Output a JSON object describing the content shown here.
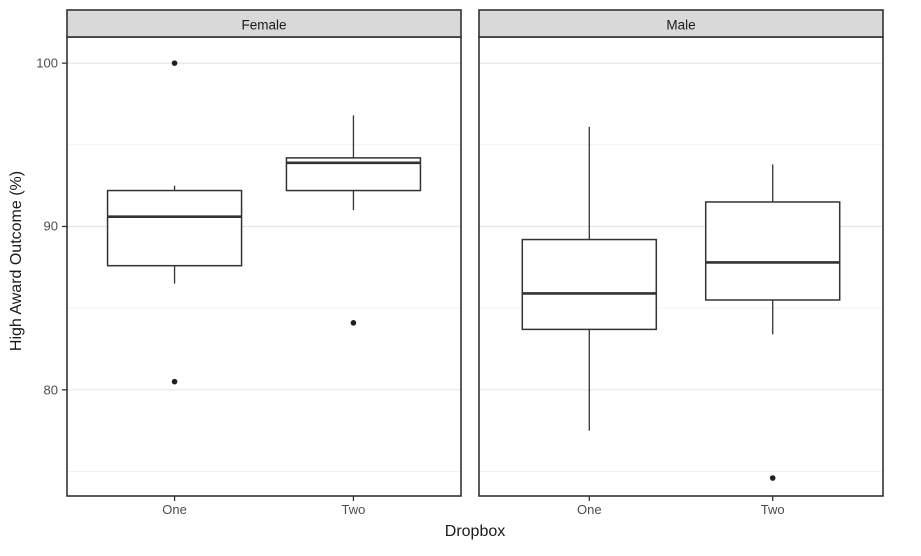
{
  "chart_data": {
    "type": "boxplot",
    "title": "",
    "xlabel": "Dropbox",
    "ylabel": "High Award Outcome (%)",
    "ylim": [
      73.5,
      101.6
    ],
    "y_ticks": [
      100,
      90,
      80
    ],
    "y_tick_labels": [
      "100",
      "90",
      "80"
    ],
    "y_major_gridlines": [
      100,
      90,
      80
    ],
    "y_minor_gridlines": [
      95,
      85,
      75
    ],
    "categories": [
      "One",
      "Two"
    ],
    "grid": true,
    "legend": null,
    "facets": [
      {
        "label": "Female",
        "boxes": [
          {
            "category": "One",
            "whisker_low": 86.5,
            "q1": 87.6,
            "median": 90.6,
            "q3": 92.2,
            "whisker_high": 92.5,
            "outliers": [
              100,
              80.5
            ]
          },
          {
            "category": "Two",
            "whisker_low": 91.0,
            "q1": 92.2,
            "median": 93.9,
            "q3": 94.2,
            "whisker_high": 96.8,
            "outliers": [
              84.1
            ]
          }
        ]
      },
      {
        "label": "Male",
        "boxes": [
          {
            "category": "One",
            "whisker_low": 77.5,
            "q1": 83.7,
            "median": 85.9,
            "q3": 89.2,
            "whisker_high": 96.1,
            "outliers": []
          },
          {
            "category": "Two",
            "whisker_low": 83.4,
            "q1": 85.5,
            "median": 87.8,
            "q3": 91.5,
            "whisker_high": 93.8,
            "outliers": [
              74.6
            ]
          }
        ]
      }
    ]
  },
  "style": {
    "background": "#ffffff",
    "strip_fill": "#d9d9d9",
    "strip_border": "#333333",
    "panel_border": "#333333",
    "box_stroke": "#333333",
    "box_fill": "#ffffff",
    "grid_major": "#e6e6e6",
    "grid_minor": "#f2f2f2",
    "tick_color": "#333333",
    "tick_label_color": "#4d4d4d",
    "title_color": "#1a1a1a",
    "outlier_color": "#1f1f1f"
  }
}
